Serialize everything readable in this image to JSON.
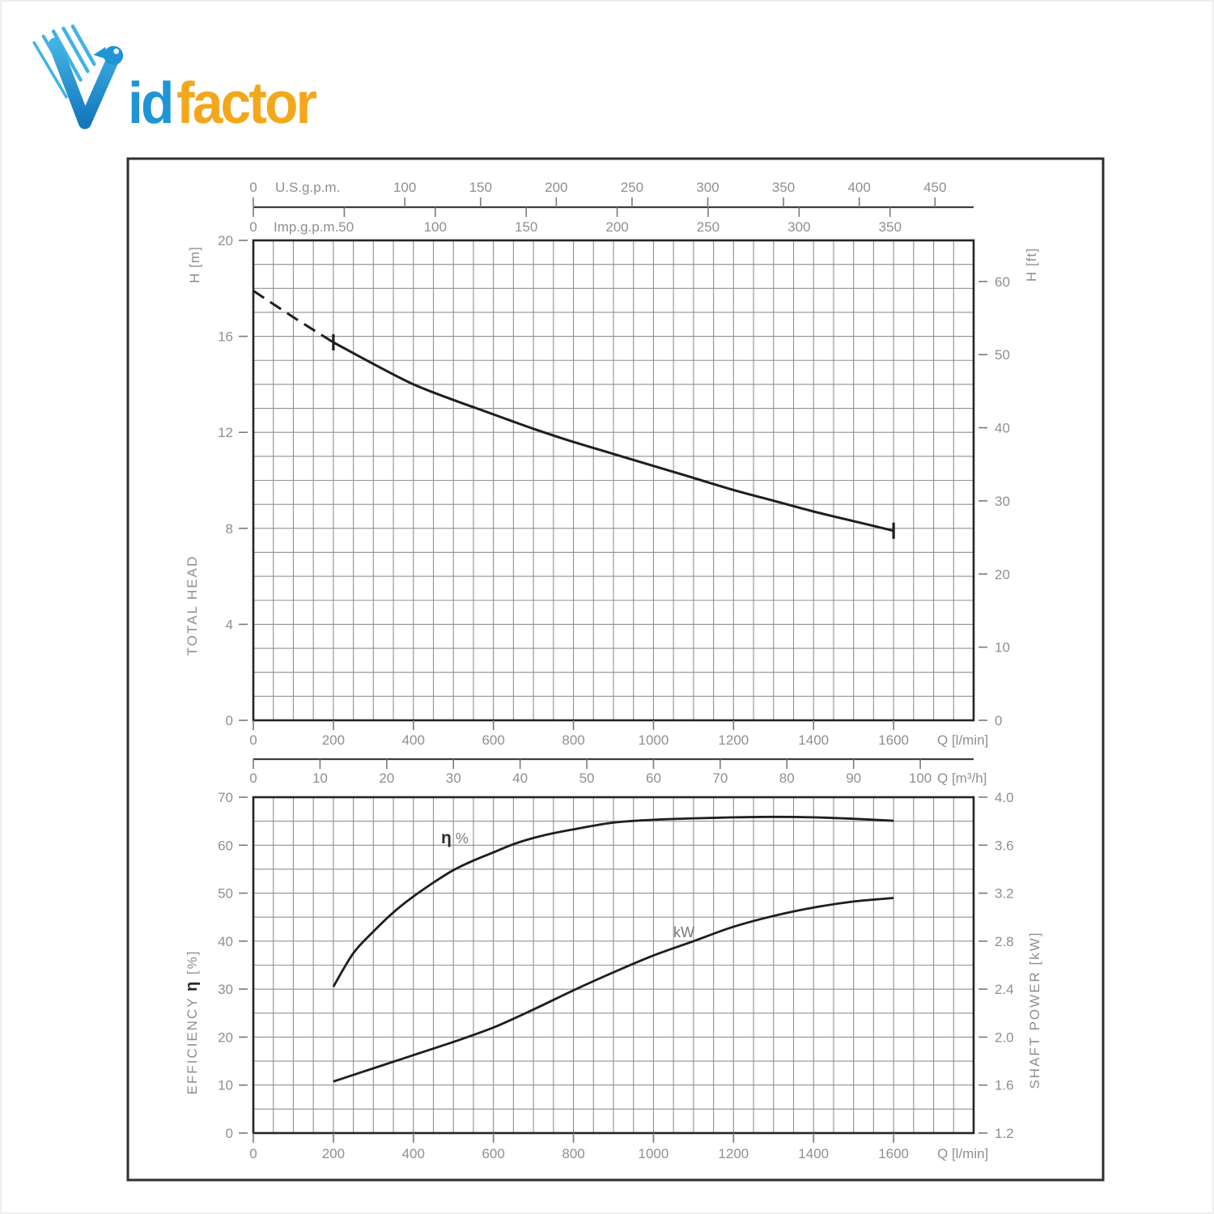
{
  "page": {
    "background": "#ffffff",
    "outer_frame_color": "#2f2f2f",
    "edge_border_color": "#ededed"
  },
  "style": {
    "curve_color": "#1e1e1e",
    "grid_color": "#909090",
    "frame_color": "#242424",
    "axis_line_color": "#3e3e3e",
    "label_color": "#8f8f8f",
    "tick_color": "#7a7a7a",
    "emph_label_color": "#2b2b2b"
  },
  "logo": {
    "id_text": "id",
    "factor_text": "factor",
    "color_blue": "#2095d5",
    "color_light_blue": "#41b2e4",
    "color_blue_dark": "#1478bd",
    "color_orange": "#f3a71a"
  },
  "chart_data": [
    {
      "type": "line",
      "title": "Total head vs flow",
      "axes": {
        "top_us": {
          "name": "U.S.g.p.m.",
          "ticks": [
            0,
            100,
            150,
            200,
            250,
            300,
            350,
            400,
            450
          ],
          "lmin_per_unit": 3.7854
        },
        "top_imp": {
          "name": "Imp.g.p.m.",
          "ticks": [
            0,
            50,
            100,
            150,
            200,
            250,
            300,
            350
          ],
          "lmin_per_unit": 4.5461
        },
        "bottom": {
          "name": "Q [l/min]",
          "ticks": [
            0,
            200,
            400,
            600,
            800,
            1000,
            1200,
            1400,
            1600
          ],
          "range": [
            0,
            1800
          ],
          "grid_step": 50
        },
        "left": {
          "unit": "H [m]",
          "name": "TOTAL HEAD",
          "ticks": [
            0,
            4,
            8,
            12,
            16,
            20
          ],
          "range": [
            0,
            20
          ],
          "grid_step": 1
        },
        "right": {
          "unit": "H [ft]",
          "ticks": [
            0,
            10,
            20,
            30,
            40,
            50,
            60
          ],
          "m_per_unit": 0.3048
        }
      },
      "series": [
        {
          "name": "head-dashed",
          "dash": true,
          "end_bars": false,
          "points": [
            [
              0,
              17.9
            ],
            [
              100,
              16.8
            ],
            [
              200,
              15.75
            ]
          ]
        },
        {
          "name": "head-solid",
          "dash": false,
          "end_bars": true,
          "points": [
            [
              200,
              15.75
            ],
            [
              300,
              14.85
            ],
            [
              400,
              14.0
            ],
            [
              500,
              13.35
            ],
            [
              600,
              12.75
            ],
            [
              700,
              12.15
            ],
            [
              800,
              11.6
            ],
            [
              900,
              11.1
            ],
            [
              1000,
              10.6
            ],
            [
              1100,
              10.1
            ],
            [
              1200,
              9.6
            ],
            [
              1300,
              9.15
            ],
            [
              1400,
              8.7
            ],
            [
              1500,
              8.3
            ],
            [
              1600,
              7.9
            ]
          ]
        }
      ]
    },
    {
      "type": "line",
      "title": "Efficiency and shaft power vs flow",
      "axes": {
        "top": {
          "name": "Q [m³/h]",
          "ticks": [
            0,
            10,
            20,
            30,
            40,
            50,
            60,
            70,
            80,
            90,
            100
          ],
          "lmin_per_unit": 16.6667
        },
        "bottom": {
          "name": "Q [l/min]",
          "ticks": [
            0,
            200,
            400,
            600,
            800,
            1000,
            1200,
            1400,
            1600
          ],
          "range": [
            0,
            1800
          ],
          "grid_step": 50
        },
        "left": {
          "name": "EFFICIENCY",
          "unit": "η [%]",
          "ticks": [
            0,
            10,
            20,
            30,
            40,
            50,
            60,
            70
          ],
          "range": [
            0,
            70
          ],
          "grid_step": 5
        },
        "right": {
          "name": "SHAFT POWER [kW]",
          "tick_labels": [
            "4.0",
            "3.6",
            "3.2",
            "2.8",
            "2.4",
            "2.0",
            "1.6",
            "1.2"
          ],
          "range": [
            1.2,
            4.0
          ]
        }
      },
      "series": [
        {
          "name": "efficiency",
          "label": "η %",
          "axis": "left",
          "points": [
            [
              200,
              30.5
            ],
            [
              250,
              37.5
            ],
            [
              300,
              42
            ],
            [
              350,
              46
            ],
            [
              400,
              49.3
            ],
            [
              450,
              52.2
            ],
            [
              500,
              54.8
            ],
            [
              550,
              56.8
            ],
            [
              600,
              58.5
            ],
            [
              650,
              60.2
            ],
            [
              700,
              61.5
            ],
            [
              750,
              62.5
            ],
            [
              800,
              63.3
            ],
            [
              900,
              64.7
            ],
            [
              1000,
              65.3
            ],
            [
              1100,
              65.6
            ],
            [
              1200,
              65.8
            ],
            [
              1300,
              65.9
            ],
            [
              1400,
              65.8
            ],
            [
              1500,
              65.5
            ],
            [
              1600,
              65.1
            ]
          ]
        },
        {
          "name": "shaft-power",
          "label": "kW",
          "axis": "right",
          "points": [
            [
              200,
              1.63
            ],
            [
              300,
              1.74
            ],
            [
              400,
              1.85
            ],
            [
              500,
              1.96
            ],
            [
              600,
              2.08
            ],
            [
              700,
              2.23
            ],
            [
              800,
              2.39
            ],
            [
              900,
              2.54
            ],
            [
              1000,
              2.68
            ],
            [
              1100,
              2.8
            ],
            [
              1200,
              2.92
            ],
            [
              1300,
              3.01
            ],
            [
              1400,
              3.08
            ],
            [
              1500,
              3.13
            ],
            [
              1600,
              3.16
            ]
          ]
        }
      ]
    }
  ]
}
